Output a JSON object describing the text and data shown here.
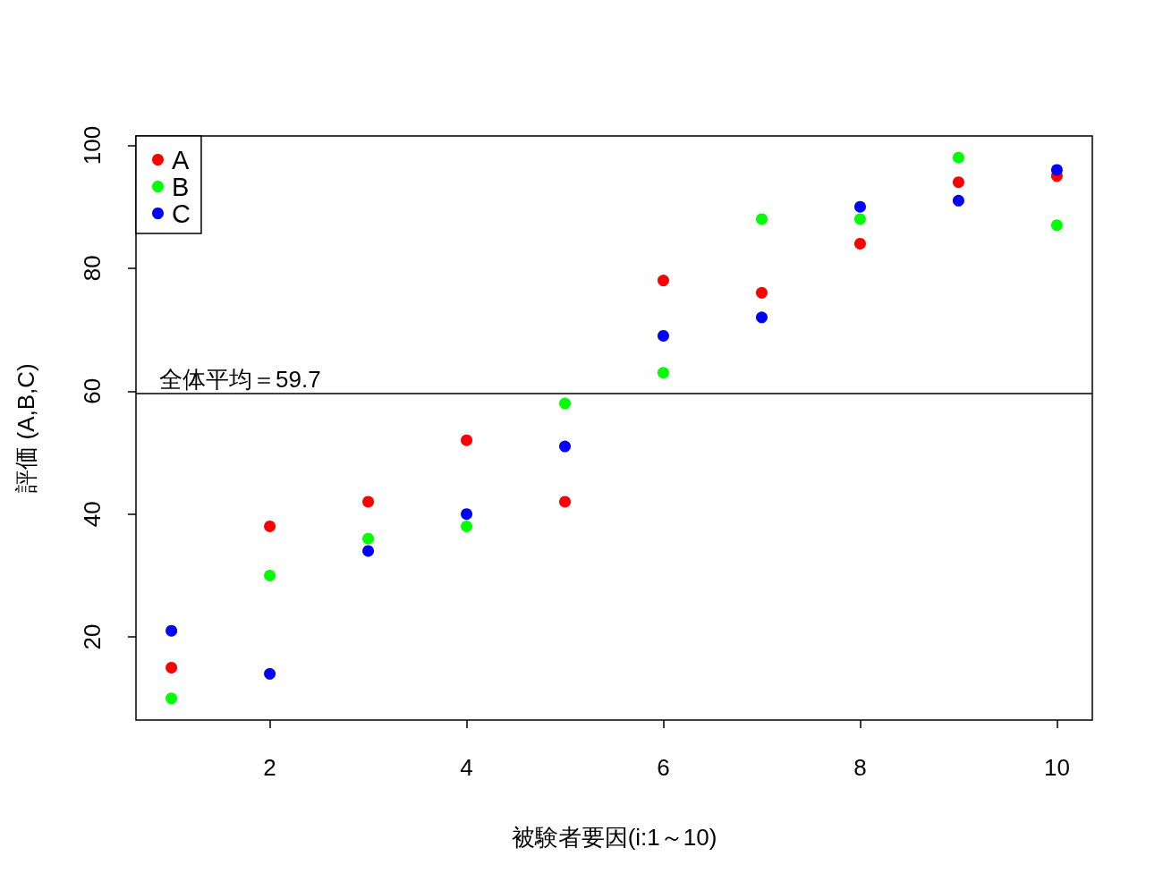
{
  "chart_data": {
    "type": "scatter",
    "xlabel": "被験者要因(i:1～10)",
    "ylabel": "評価 (A,B,C)",
    "x": [
      1,
      2,
      3,
      4,
      5,
      6,
      7,
      8,
      9,
      10
    ],
    "series": [
      {
        "name": "A",
        "color": "#ff0000",
        "values": [
          15,
          38,
          42,
          52,
          42,
          78,
          76,
          84,
          94,
          95
        ]
      },
      {
        "name": "B",
        "color": "#00ff00",
        "values": [
          10,
          30,
          36,
          38,
          58,
          63,
          88,
          88,
          98,
          87
        ]
      },
      {
        "name": "C",
        "color": "#0000ff",
        "values": [
          21,
          14,
          34,
          40,
          51,
          69,
          72,
          90,
          91,
          96
        ]
      }
    ],
    "xlim": [
      0.64,
      10.36
    ],
    "ylim": [
      6.48,
      101.52
    ],
    "xticks": [
      2,
      4,
      6,
      8,
      10
    ],
    "yticks": [
      20,
      40,
      60,
      80,
      100
    ],
    "ref_lines": [
      {
        "axis": "y",
        "value": 59.7,
        "label": "全体平均＝59.7",
        "color": "#000000"
      }
    ],
    "legend": "top left",
    "grid": false,
    "marker": "circle"
  }
}
